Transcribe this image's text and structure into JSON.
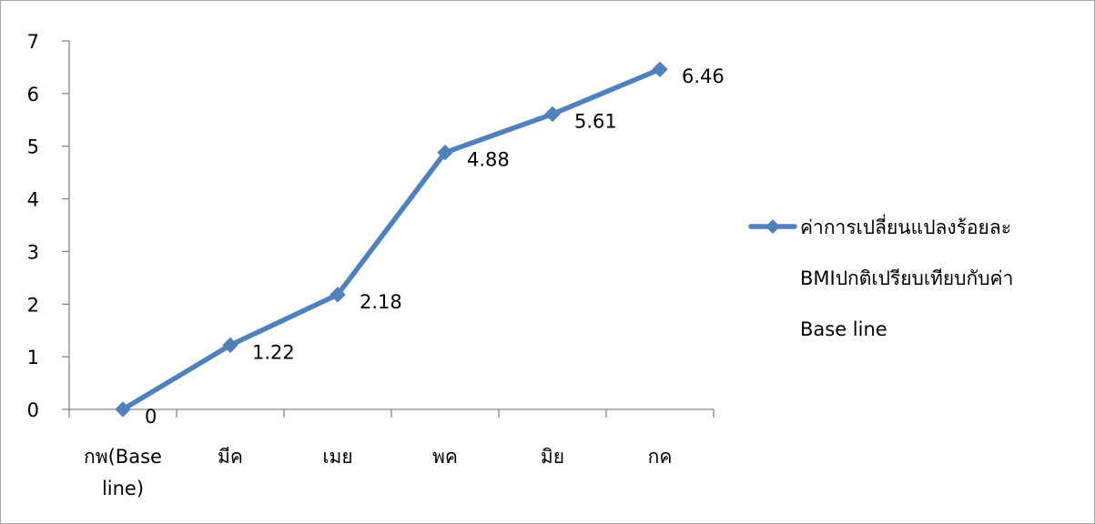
{
  "chart_data": {
    "type": "line",
    "title": "",
    "xlabel": "",
    "ylabel": "",
    "categories": [
      [
        "กพ(Base",
        "line)"
      ],
      [
        "มีค"
      ],
      [
        "เมย"
      ],
      [
        "พค"
      ],
      [
        "มิย"
      ],
      [
        "กค"
      ]
    ],
    "series": [
      {
        "name": [
          "ค่าการเปลี่ยนแปลงร้อยละ",
          "BMIปกติเปรียบเทียบกับค่า",
          "Base line"
        ],
        "values": [
          0,
          1.22,
          2.18,
          4.88,
          5.61,
          6.46
        ],
        "data_labels": [
          "0",
          "1.22",
          "2.18",
          "4.88",
          "5.61",
          "6.46"
        ],
        "color": "#4f81bd"
      }
    ],
    "ylim": [
      0,
      7
    ],
    "yticks": [
      0,
      1,
      2,
      3,
      4,
      5,
      6,
      7
    ],
    "grid": false,
    "legend_position": "right",
    "axis_color": "#868686"
  }
}
